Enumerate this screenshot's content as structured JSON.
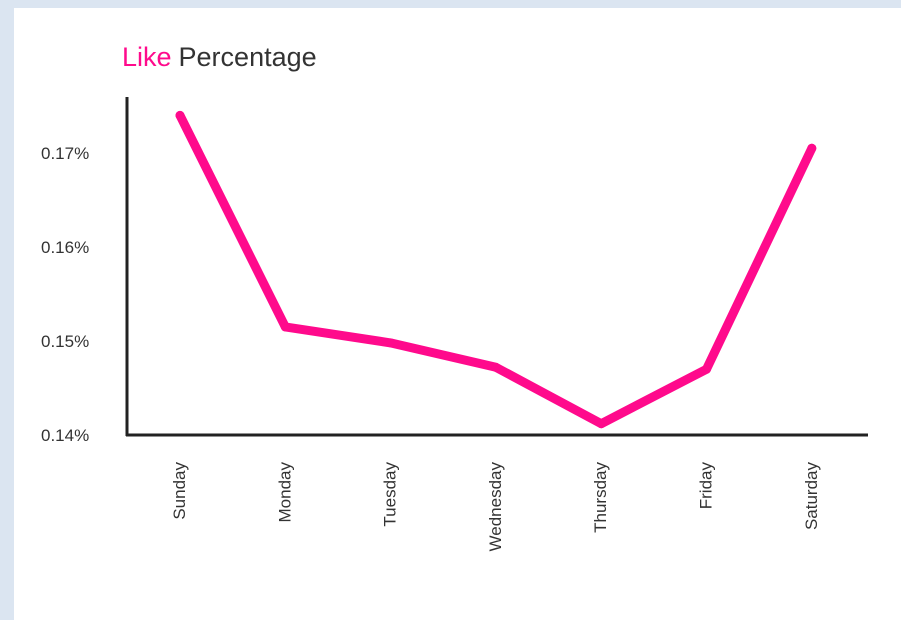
{
  "colors": {
    "accent": "#ff0a8c",
    "axis": "#222222",
    "text": "#333333"
  },
  "chart_data": {
    "type": "line",
    "title_highlight": "Like",
    "title_rest": "Percentage",
    "categories": [
      "Sunday",
      "Monday",
      "Tuesday",
      "Wednesday",
      "Thursday",
      "Friday",
      "Saturday"
    ],
    "series": [
      {
        "values": [
          0.174,
          0.1515,
          0.1498,
          0.1472,
          0.1412,
          0.147,
          0.1705
        ]
      }
    ],
    "yticks": [
      "0.14%",
      "0.15%",
      "0.16%",
      "0.17%"
    ],
    "ytick_values": [
      0.14,
      0.15,
      0.16,
      0.17
    ],
    "ylim": [
      0.14,
      0.1758
    ],
    "grid": false,
    "legend": "none"
  }
}
